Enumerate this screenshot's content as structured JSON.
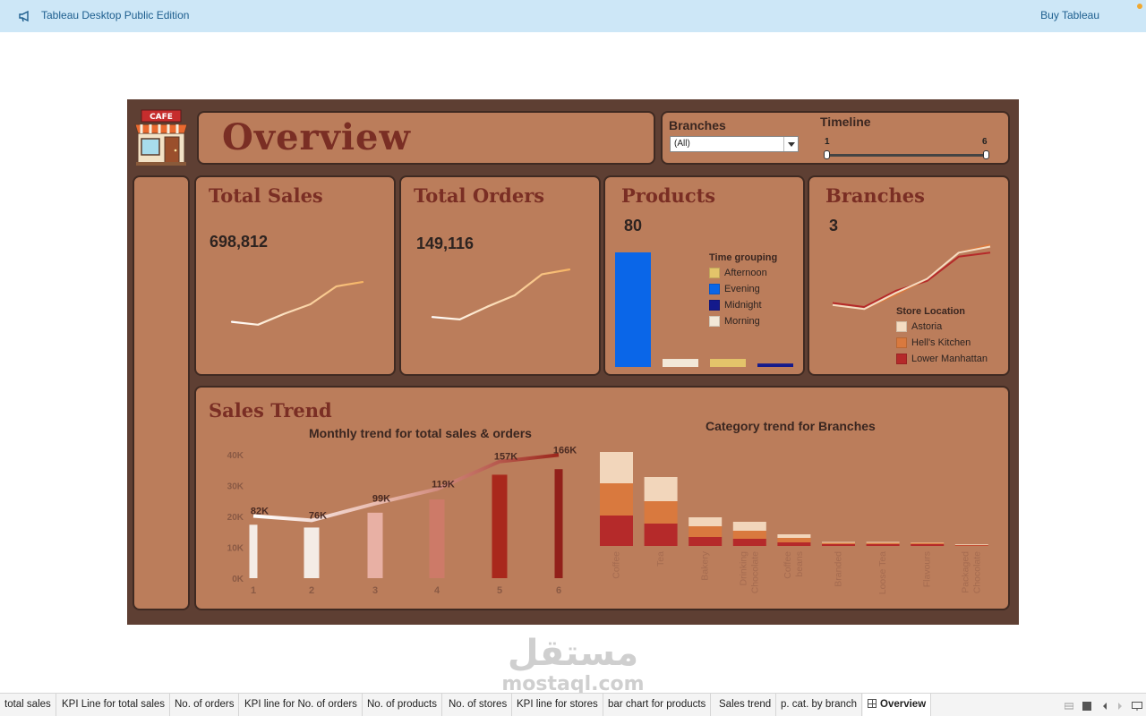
{
  "app": {
    "title": "Tableau Desktop Public Edition",
    "buy_label": "Buy Tableau"
  },
  "dashboard": {
    "title": "Overview",
    "logo_text": "CAFE",
    "filters": {
      "branches_label": "Branches",
      "branches_value": "(All)",
      "timeline_label": "Timeline",
      "timeline_min": "1",
      "timeline_max": "6"
    },
    "kpis": {
      "total_sales": {
        "title": "Total Sales",
        "value": "698,812"
      },
      "total_orders": {
        "title": "Total Orders",
        "value": "149,116"
      },
      "products": {
        "title": "Products",
        "value": "80"
      },
      "branches": {
        "title": "Branches",
        "value": "3"
      }
    },
    "time_grouping_legend": {
      "title": "Time grouping",
      "items": [
        {
          "label": "Afternoon",
          "color": "#e3c46a"
        },
        {
          "label": "Evening",
          "color": "#0a66e8"
        },
        {
          "label": "Midnight",
          "color": "#141a8c"
        },
        {
          "label": "Morning",
          "color": "#f2e8d8"
        }
      ]
    },
    "store_location_legend": {
      "title": "Store Location",
      "items": [
        {
          "label": "Astoria",
          "color": "#f5dcc2"
        },
        {
          "label": "Hell's Kitchen",
          "color": "#d9793e"
        },
        {
          "label": "Lower Manhattan",
          "color": "#b52a2a"
        }
      ]
    },
    "sales_trend": {
      "title": "Sales Trend",
      "monthly_title": "Monthly trend for total sales & orders",
      "category_title": "Category trend for Branches"
    }
  },
  "chart_data": [
    {
      "type": "line",
      "name": "total-sales-sparkline",
      "x": [
        1,
        2,
        3,
        4,
        5,
        6
      ],
      "values": [
        82,
        76,
        99,
        119,
        157,
        166
      ]
    },
    {
      "type": "line",
      "name": "total-orders-sparkline",
      "x": [
        1,
        2,
        3,
        4,
        5,
        6
      ],
      "values": [
        17.3,
        16.4,
        21.2,
        25.5,
        33.5,
        35.3
      ]
    },
    {
      "type": "bar",
      "name": "products-by-time-grouping",
      "categories": [
        "Evening",
        "Morning",
        "Afternoon",
        "Midnight"
      ],
      "values": [
        100,
        7,
        7,
        3
      ]
    },
    {
      "type": "line",
      "name": "branches-sparkline",
      "x": [
        1,
        2,
        3,
        4,
        5,
        6
      ],
      "series": [
        {
          "name": "Astoria",
          "values": [
            27,
            25,
            33,
            40,
            53,
            56
          ],
          "color": "#f5dcc2"
        },
        {
          "name": "Hell's Kitchen",
          "values": [
            27,
            25,
            32,
            40,
            53,
            57
          ],
          "color": "#d9793e"
        },
        {
          "name": "Lower Manhattan",
          "values": [
            28,
            26,
            34,
            39,
            51,
            53
          ],
          "color": "#b52a2a"
        }
      ]
    },
    {
      "type": "bar",
      "name": "monthly-trend",
      "title": "Monthly trend for total sales & orders",
      "categories": [
        "1",
        "2",
        "3",
        "4",
        "5",
        "6"
      ],
      "ylim": [
        0,
        40000
      ],
      "yticks": [
        "0K",
        "10K",
        "20K",
        "30K",
        "40K"
      ],
      "series": [
        {
          "name": "orders",
          "values": [
            17300,
            16400,
            21200,
            25500,
            33500,
            35300
          ]
        },
        {
          "name": "sales",
          "values": [
            82000,
            76000,
            99000,
            119000,
            157000,
            166000
          ]
        }
      ],
      "data_labels": [
        "82K",
        "76K",
        "99K",
        "119K",
        "157K",
        "166K"
      ],
      "bar_colors": [
        "#f4ece6",
        "#f4ece6",
        "#e8b0a4",
        "#cd7a68",
        "#a9281c",
        "#92201a"
      ]
    },
    {
      "type": "bar",
      "name": "category-trend-for-branches",
      "title": "Category trend for Branches",
      "stacked": true,
      "categories": [
        "Coffee",
        "Tea",
        "Bakery",
        "Drinking Chocolate",
        "Coffee beans",
        "Branded",
        "Loose Tea",
        "Flavours",
        "Packaged Chocolate"
      ],
      "series": [
        {
          "name": "Lower Manhattan",
          "values": [
            34,
            25,
            10,
            8,
            4,
            2,
            2,
            2,
            0.6
          ]
        },
        {
          "name": "Hell's Kitchen",
          "values": [
            36,
            25,
            12,
            9,
            5,
            1.5,
            1.5,
            1.5,
            0.6
          ]
        },
        {
          "name": "Astoria",
          "values": [
            35,
            27,
            10,
            10,
            4,
            1,
            1,
            0.5,
            0.8
          ]
        }
      ]
    }
  ],
  "tabs": [
    {
      "label": "total sales"
    },
    {
      "label": "KPI Line for total sales"
    },
    {
      "label": "No. of orders"
    },
    {
      "label": "KPI line for No. of orders"
    },
    {
      "label": "No. of products"
    },
    {
      "label": "No. of stores"
    },
    {
      "label": "KPI line for stores"
    },
    {
      "label": "bar chart for products"
    },
    {
      "label": "Sales trend"
    },
    {
      "label": "p. cat. by branch"
    },
    {
      "label": "Overview"
    }
  ],
  "watermark": {
    "arabic": "مستقل",
    "latin": "mostaql.com"
  }
}
